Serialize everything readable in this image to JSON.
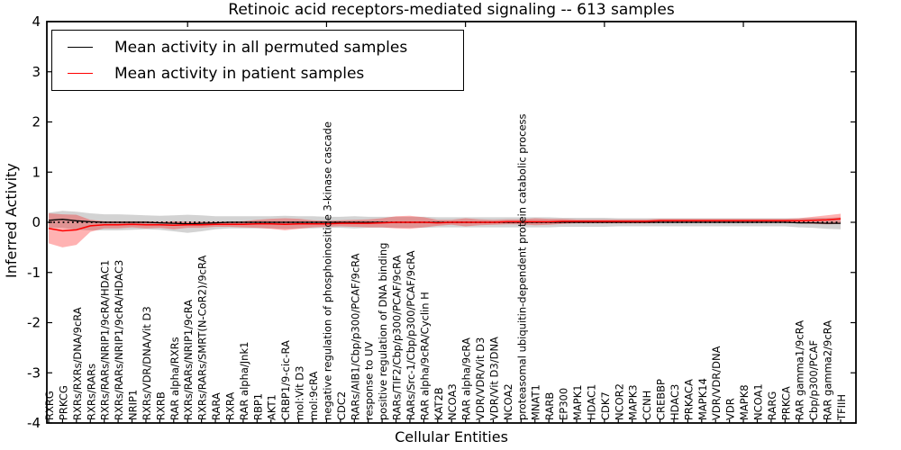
{
  "figure": {
    "title": "Retinoic acid receptors-mediated signaling -- 613 samples",
    "xlabel": "Cellular Entities",
    "ylabel": "Inferred Activity"
  },
  "legend": {
    "items": [
      {
        "label": "Mean activity in all permuted samples",
        "color": "#000000"
      },
      {
        "label": "Mean activity in patient samples",
        "color": "#ff0000"
      }
    ]
  },
  "chart_data": {
    "type": "line",
    "title": "Retinoic acid receptors-mediated signaling -- 613 samples",
    "xlabel": "Cellular Entities",
    "ylabel": "Inferred Activity",
    "ylim": [
      -4,
      4
    ],
    "yticks": [
      -4,
      -3,
      -2,
      -1,
      0,
      1,
      2,
      3,
      4
    ],
    "x_major_tick_every": 10,
    "grid": false,
    "legend_position": "upper left",
    "zero_line": {
      "style": "dotted",
      "color": "#000000"
    },
    "categories": [
      "RXRG",
      "PRKCG",
      "RXRs/RXRs/DNA/9cRA",
      "RXRs/RARs",
      "RXRs/RARs/NRIP1/9cRA/HDAC1",
      "RXRs/RARs/NRIP1/9cRA/HDAC3",
      "NRIP1",
      "RXRs/VDR/DNA/Vit D3",
      "RXRB",
      "RAR alpha/RXRs",
      "RXRs/RARs/NRIP1/9cRA",
      "RXRs/RARs/SMRT(N-CoR2)/9cRA",
      "RARA",
      "RXRA",
      "RAR alpha/Jnk1",
      "RBP1",
      "AKT1",
      "CRBP1/9-cic-RA",
      "mol:Vit D3",
      "mol:9cRA",
      "negative regulation of phosphoinositide 3-kinase cascade",
      "CDC2",
      "RARs/AIB1/Cbp/p300/PCAF/9cRA",
      "response to UV",
      "positive regulation of DNA binding",
      "RARs/TIF2/Cbp/p300/PCAF/9cRA",
      "RARs/Src-1/Cbp/p300/PCAF/9cRA",
      "RAR alpha/9cRA/Cyclin H",
      "KAT2B",
      "NCOA3",
      "RAR alpha/9cRA",
      "VDR/VDR/Vit D3",
      "VDR/Vit D3/DNA",
      "NCOA2",
      "proteasomal ubiquitin-dependent protein catabolic process",
      "MNAT1",
      "RARB",
      "EP300",
      "MAPK1",
      "HDAC1",
      "CDK7",
      "NCOR2",
      "MAPK3",
      "CCNH",
      "CREBBP",
      "HDAC3",
      "PRKACA",
      "MAPK14",
      "VDR/VDR/DNA",
      "VDR",
      "MAPK8",
      "NCOA1",
      "RARG",
      "PRKCA",
      "RAR gamma1/9cRA",
      "Cbp/p300/PCAF",
      "RAR gamma2/9cRA",
      "TFIIH"
    ],
    "series": [
      {
        "name": "Mean activity in all permuted samples",
        "color": "#000000",
        "band_color": "rgba(128,128,128,0.35)",
        "values": [
          0.04,
          0.06,
          0.03,
          0.01,
          0,
          0,
          0,
          0,
          -0.01,
          -0.02,
          -0.03,
          -0.02,
          -0.01,
          0,
          0,
          0,
          0,
          0,
          0,
          0,
          0,
          0,
          0,
          0,
          0,
          0,
          0,
          0,
          0,
          0,
          0,
          0,
          0,
          0,
          0,
          0,
          0,
          0,
          0,
          0,
          0,
          0,
          0,
          0,
          0,
          0,
          0,
          0,
          0,
          0,
          0,
          0,
          0,
          0,
          -0.01,
          -0.01,
          -0.02,
          -0.02
        ],
        "band_halfwidth": [
          0.15,
          0.17,
          0.18,
          0.17,
          0.16,
          0.16,
          0.15,
          0.14,
          0.14,
          0.16,
          0.18,
          0.16,
          0.13,
          0.12,
          0.12,
          0.12,
          0.12,
          0.13,
          0.12,
          0.12,
          0.11,
          0.11,
          0.12,
          0.11,
          0.11,
          0.11,
          0.11,
          0.11,
          0.1,
          0.1,
          0.1,
          0.1,
          0.1,
          0.1,
          0.1,
          0.1,
          0.1,
          0.09,
          0.09,
          0.09,
          0.09,
          0.08,
          0.08,
          0.08,
          0.08,
          0.08,
          0.08,
          0.08,
          0.08,
          0.08,
          0.08,
          0.08,
          0.08,
          0.08,
          0.09,
          0.1,
          0.11,
          0.12
        ]
      },
      {
        "name": "Mean activity in patient samples",
        "color": "#ff0000",
        "band_color": "rgba(255,0,0,0.30)",
        "values": [
          -0.12,
          -0.17,
          -0.15,
          -0.07,
          -0.05,
          -0.05,
          -0.04,
          -0.05,
          -0.05,
          -0.06,
          -0.05,
          -0.05,
          -0.04,
          -0.04,
          -0.04,
          -0.03,
          -0.03,
          -0.04,
          -0.03,
          -0.03,
          -0.03,
          -0.02,
          -0.02,
          -0.02,
          -0.01,
          0,
          0,
          0,
          -0.01,
          0,
          0,
          0,
          0,
          0.01,
          0.01,
          0.01,
          0.01,
          0.02,
          0.02,
          0.02,
          0.02,
          0.02,
          0.02,
          0.02,
          0.03,
          0.03,
          0.03,
          0.03,
          0.03,
          0.03,
          0.03,
          0.03,
          0.03,
          0.03,
          0.03,
          0.04,
          0.05,
          0.07
        ],
        "band_halfwidth": [
          0.3,
          0.33,
          0.3,
          0.12,
          0.07,
          0.07,
          0.06,
          0.07,
          0.06,
          0.08,
          0.06,
          0.06,
          0.05,
          0.05,
          0.06,
          0.08,
          0.1,
          0.12,
          0.1,
          0.07,
          0.06,
          0.06,
          0.07,
          0.08,
          0.09,
          0.12,
          0.13,
          0.1,
          0.06,
          0.05,
          0.08,
          0.06,
          0.05,
          0.05,
          0.05,
          0.07,
          0.06,
          0.05,
          0.04,
          0.04,
          0.04,
          0.04,
          0.04,
          0.04,
          0.04,
          0.04,
          0.04,
          0.04,
          0.04,
          0.04,
          0.04,
          0.04,
          0.04,
          0.04,
          0.05,
          0.07,
          0.09,
          0.1
        ]
      }
    ]
  }
}
